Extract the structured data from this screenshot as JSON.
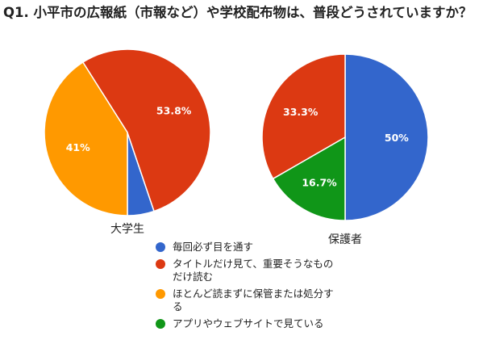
{
  "title": "Q1. 小平市の広報紙（市報など）や学校配布物は、普段どうされていますか？",
  "legend": [
    {
      "label": "毎回必ず目を通す",
      "color": "#3366cc"
    },
    {
      "label": "タイトルだけ見て、重要そうなものだけ読む",
      "color": "#dc3912"
    },
    {
      "label": "ほとんど読まずに保管または処分する",
      "color": "#ff9900"
    },
    {
      "label": "アプリやウェブサイトで見ている",
      "color": "#109618"
    }
  ],
  "chart_data": [
    {
      "type": "pie",
      "title": "大学生",
      "series": [
        {
          "name": "毎回必ず目を通す",
          "value": 5.2,
          "color": "#3366cc",
          "label": ""
        },
        {
          "name": "タイトルだけ見て、重要そうなものだけ読む",
          "value": 53.8,
          "color": "#dc3912",
          "label": "53.8%"
        },
        {
          "name": "ほとんど読まずに保管または処分する",
          "value": 41,
          "color": "#ff9900",
          "label": "41%"
        }
      ]
    },
    {
      "type": "pie",
      "title": "保護者",
      "series": [
        {
          "name": "毎回必ず目を通す",
          "value": 50,
          "color": "#3366cc",
          "label": "50%"
        },
        {
          "name": "タイトルだけ見て、重要そうなものだけ読む",
          "value": 33.3,
          "color": "#dc3912",
          "label": "33.3%"
        },
        {
          "name": "アプリやウェブサイトで見ている",
          "value": 16.7,
          "color": "#109618",
          "label": "16.7%"
        }
      ]
    }
  ]
}
